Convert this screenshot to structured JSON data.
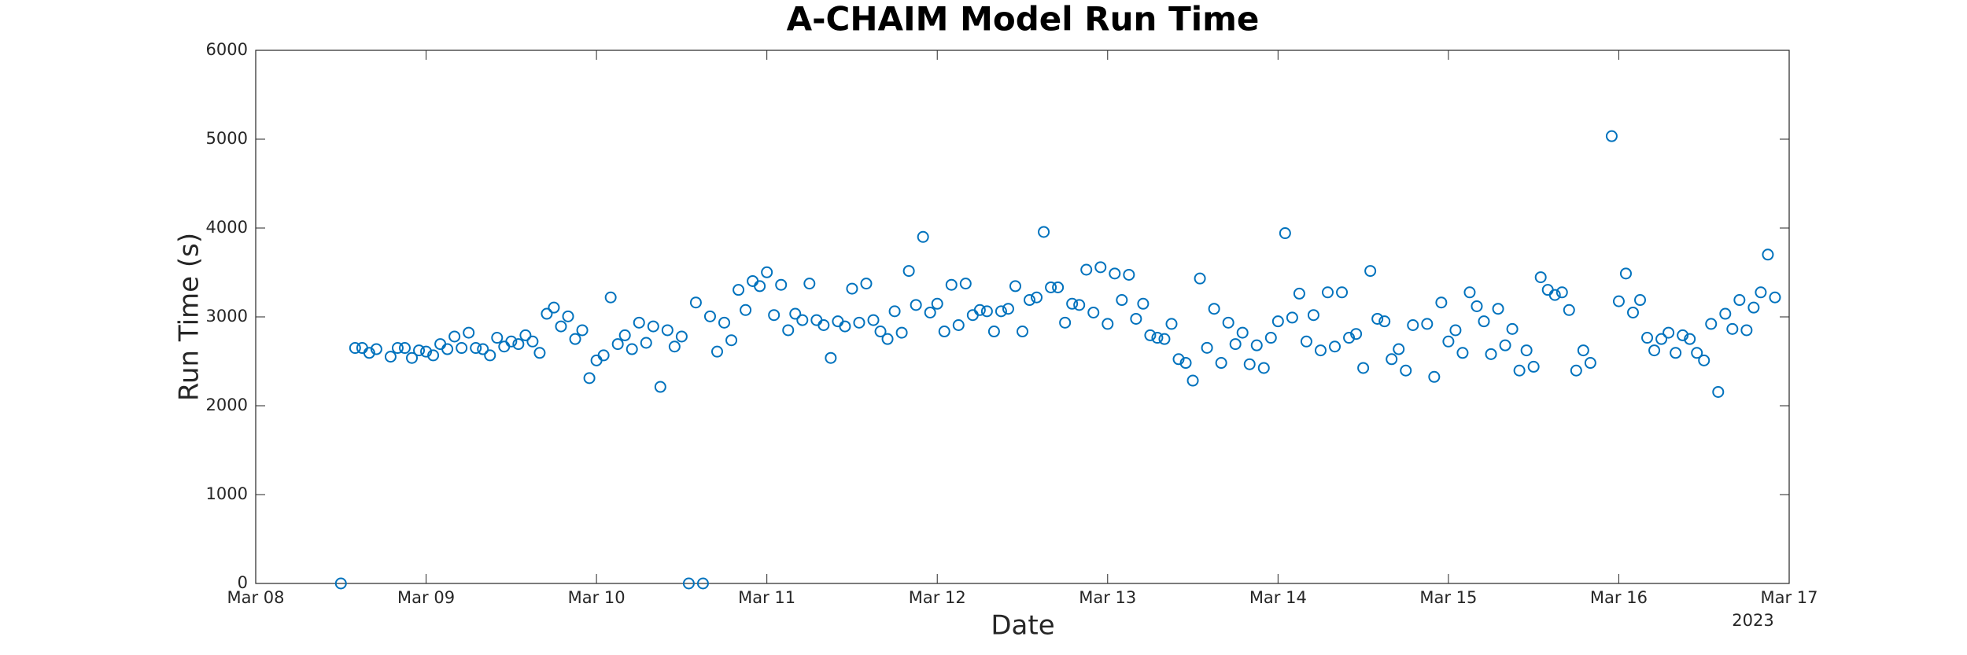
{
  "chart_data": {
    "type": "scatter",
    "title": "A-CHAIM Model Run Time",
    "x_label": "Date",
    "y_label": "Run Time (s)",
    "x_year_label": "2023",
    "color": "#0072bd",
    "marker": "circle",
    "grid": false,
    "xlim": [
      0,
      216
    ],
    "xticks": [
      {
        "value": 0,
        "label": "Mar 08"
      },
      {
        "value": 24,
        "label": "Mar 09"
      },
      {
        "value": 48,
        "label": "Mar 10"
      },
      {
        "value": 72,
        "label": "Mar 11"
      },
      {
        "value": 96,
        "label": "Mar 12"
      },
      {
        "value": 120,
        "label": "Mar 13"
      },
      {
        "value": 144,
        "label": "Mar 14"
      },
      {
        "value": 168,
        "label": "Mar 15"
      },
      {
        "value": 192,
        "label": "Mar 16"
      },
      {
        "value": 216,
        "label": "Mar 17"
      }
    ],
    "ylim": [
      0,
      6000
    ],
    "yticks": [
      0,
      1000,
      2000,
      3000,
      4000,
      5000,
      6000
    ],
    "x": [
      12,
      14,
      15,
      16,
      17,
      19,
      20,
      21,
      22,
      23,
      24,
      25,
      26,
      27,
      28,
      29,
      30,
      31,
      32,
      33,
      34,
      35,
      36,
      37,
      38,
      39,
      40,
      41,
      42,
      43,
      44,
      45,
      46,
      47,
      48,
      49,
      50,
      51,
      52,
      53,
      54,
      55,
      56,
      57,
      58,
      59,
      60,
      61,
      62,
      63,
      64,
      65,
      66,
      67,
      68,
      69,
      70,
      71,
      72,
      73,
      74,
      75,
      76,
      77,
      78,
      79,
      80,
      81,
      82,
      83,
      84,
      85,
      86,
      87,
      88,
      89,
      90,
      91,
      92,
      93,
      94,
      95,
      96,
      97,
      98,
      99,
      100,
      101,
      102,
      103,
      104,
      105,
      106,
      107,
      108,
      109,
      110,
      111,
      112,
      113,
      114,
      115,
      116,
      117,
      118,
      119,
      120,
      121,
      122,
      123,
      124,
      125,
      126,
      127,
      128,
      129,
      130,
      131,
      132,
      133,
      134,
      135,
      136,
      137,
      138,
      139,
      140,
      141,
      142,
      143,
      144,
      145,
      146,
      147,
      148,
      149,
      150,
      151,
      152,
      153,
      154,
      155,
      156,
      157,
      158,
      159,
      160,
      161,
      162,
      163,
      165,
      166,
      167,
      168,
      169,
      170,
      171,
      172,
      173,
      174,
      175,
      176,
      177,
      178,
      179,
      180,
      181,
      182,
      183,
      184,
      185,
      186,
      187,
      188,
      191,
      192,
      193,
      194,
      195,
      196,
      197,
      198,
      199,
      200,
      201,
      202,
      203,
      204,
      205,
      206,
      207,
      208,
      209,
      210,
      211,
      212,
      213,
      214
    ],
    "values": [
      0,
      2650,
      2650,
      2595,
      2637,
      2552,
      2650,
      2650,
      2538,
      2623,
      2609,
      2567,
      2694,
      2637,
      2779,
      2650,
      2822,
      2650,
      2637,
      2567,
      2765,
      2666,
      2723,
      2694,
      2793,
      2723,
      2595,
      3035,
      3105,
      2893,
      3006,
      2751,
      2850,
      2311,
      2510,
      2567,
      3219,
      2694,
      2793,
      2637,
      2935,
      2708,
      2893,
      2212,
      2850,
      2666,
      2779,
      0,
      3162,
      0,
      3006,
      2609,
      2935,
      2737,
      3304,
      3077,
      3403,
      3346,
      3502,
      3020,
      3361,
      2850,
      3035,
      2964,
      3375,
      2964,
      2907,
      2538,
      2950,
      2893,
      3318,
      2935,
      3375,
      2964,
      2836,
      2751,
      3063,
      2822,
      3517,
      3134,
      3900,
      3049,
      3148,
      2836,
      3361,
      2907,
      3375,
      3020,
      3077,
      3063,
      2836,
      3063,
      3091,
      3346,
      2836,
      3190,
      3219,
      3956,
      3332,
      3332,
      2935,
      3148,
      3134,
      3531,
      3049,
      3559,
      2921,
      3488,
      3190,
      3474,
      2978,
      3148,
      2793,
      2765,
      2751,
      2921,
      2524,
      2482,
      2283,
      3432,
      2652,
      3091,
      2482,
      2935,
      2694,
      2822,
      2467,
      2680,
      2425,
      2765,
      2950,
      3942,
      2992,
      3262,
      2723,
      3020,
      2623,
      3276,
      2666,
      3276,
      2765,
      2808,
      2425,
      3517,
      2978,
      2950,
      2524,
      2637,
      2396,
      2907,
      2921,
      2325,
      3162,
      2723,
      2850,
      2595,
      3276,
      3120,
      2950,
      2581,
      3091,
      2680,
      2864,
      2396,
      2623,
      2439,
      3446,
      3304,
      3247,
      3276,
      3077,
      2396,
      2623,
      2482,
      5034,
      3176,
      3488,
      3049,
      3190,
      2765,
      2623,
      2751,
      2822,
      2595,
      2793,
      2751,
      2595,
      2510,
      2921,
      2155,
      3035,
      2864,
      3190,
      2850,
      3105,
      3276,
      3701,
      3219
    ]
  }
}
